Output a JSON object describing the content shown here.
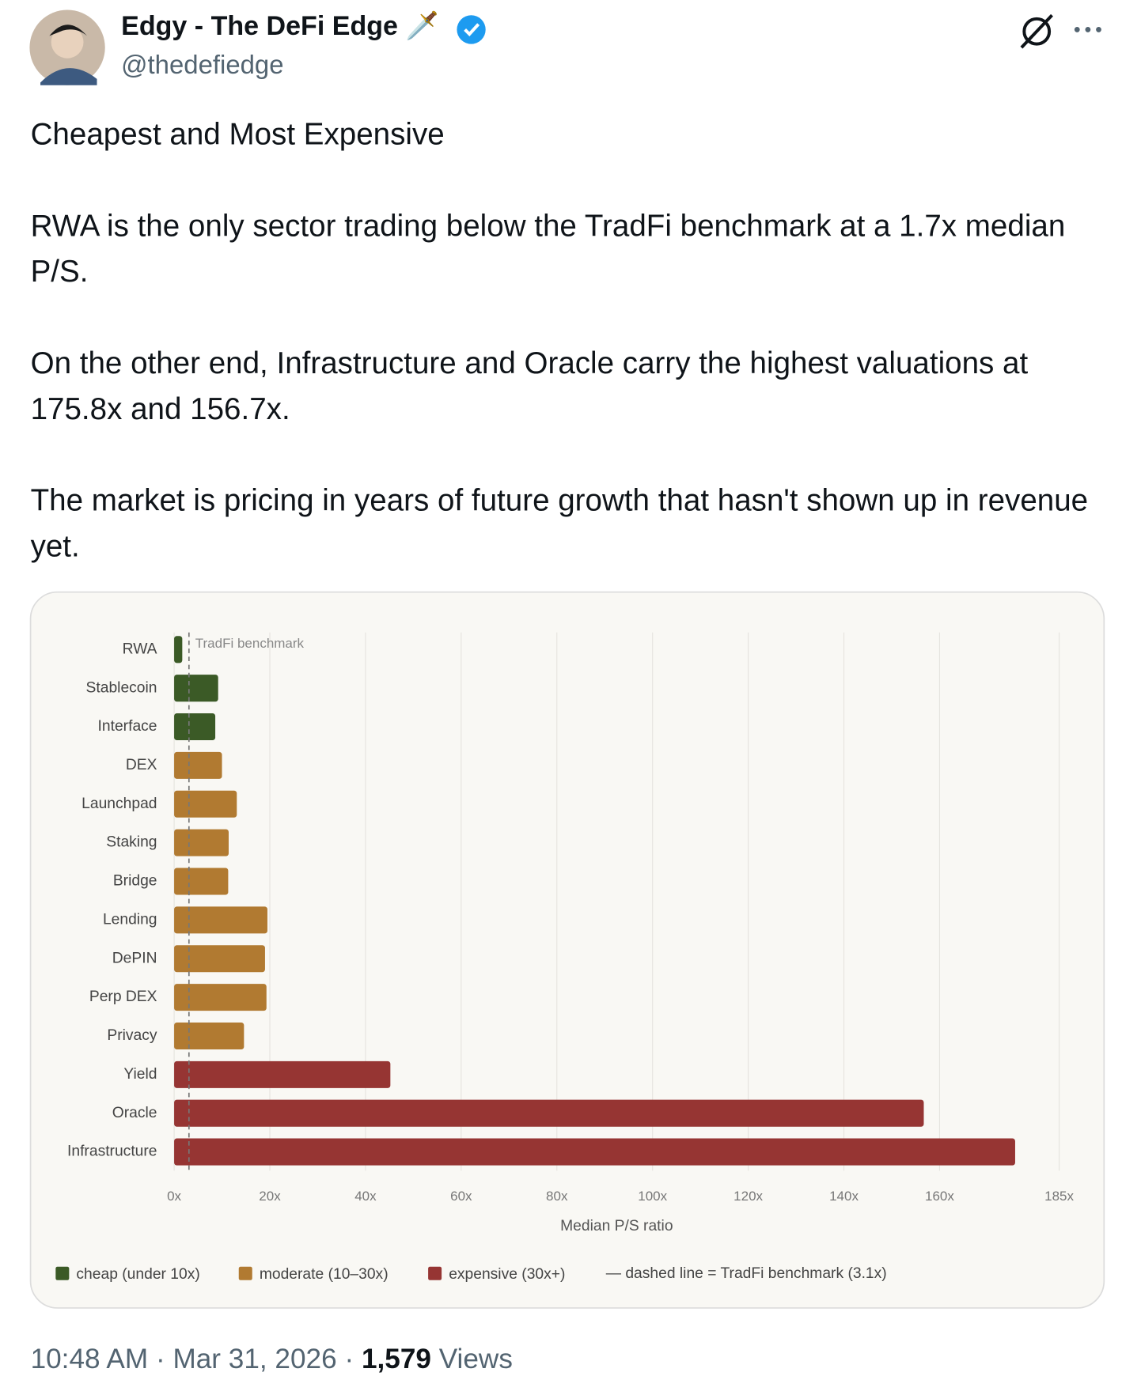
{
  "tweet": {
    "author_name": "Edgy - The DeFi Edge",
    "author_emoji": "🗡️",
    "handle": "@thedefiedge",
    "paragraphs": [
      "Cheapest and Most Expensive",
      "RWA is the only sector trading below the TradFi benchmark at a 1.7x median P/S.",
      "On the other end, Infrastructure and Oracle carry the highest valuations at 175.8x and 156.7x.",
      "The market is pricing in years of future growth that hasn't shown up in revenue yet."
    ],
    "time": "10:48 AM",
    "separator": "·",
    "date": "Mar 31, 2026",
    "views_count": "1,579",
    "views_label": "Views"
  },
  "chart_data": {
    "type": "hbar",
    "categories": [
      "RWA",
      "Stablecoin",
      "Interface",
      "DEX",
      "Launchpad",
      "Staking",
      "Bridge",
      "Lending",
      "DePIN",
      "Perp DEX",
      "Privacy",
      "Yield",
      "Oracle",
      "Infrastructure"
    ],
    "values": [
      1.7,
      9.2,
      8.6,
      10,
      13.1,
      11.4,
      11.3,
      19.5,
      19,
      19.3,
      14.6,
      45.2,
      156.7,
      175.8
    ],
    "colors": [
      "#3b5a26",
      "#3b5a26",
      "#3b5a26",
      "#b17a31",
      "#b17a31",
      "#b17a31",
      "#b17a31",
      "#b17a31",
      "#b17a31",
      "#b17a31",
      "#b17a31",
      "#963533",
      "#963533",
      "#963533"
    ],
    "xlim": [
      0,
      185
    ],
    "xticks": [
      {
        "value": 0,
        "label": "0x"
      },
      {
        "value": 20,
        "label": "20x"
      },
      {
        "value": 40,
        "label": "40x"
      },
      {
        "value": 60,
        "label": "60x"
      },
      {
        "value": 80,
        "label": "80x"
      },
      {
        "value": 100,
        "label": "100x"
      },
      {
        "value": 120,
        "label": "120x"
      },
      {
        "value": 140,
        "label": "140x"
      },
      {
        "value": 160,
        "label": "160x"
      },
      {
        "value": 185,
        "label": "185x"
      }
    ],
    "xlabel": "Median P/S ratio",
    "grid": true,
    "benchmark": 3.1,
    "benchmark_label": "TradFi benchmark",
    "legend": [
      {
        "name": "cheap (under 10x)",
        "color": "#3b5a26"
      },
      {
        "name": "moderate (10–30x)",
        "color": "#b17a31"
      },
      {
        "name": "expensive (30x+)",
        "color": "#963533"
      }
    ],
    "benchmark_note": "— dashed line = TradFi benchmark (3.1x)"
  }
}
